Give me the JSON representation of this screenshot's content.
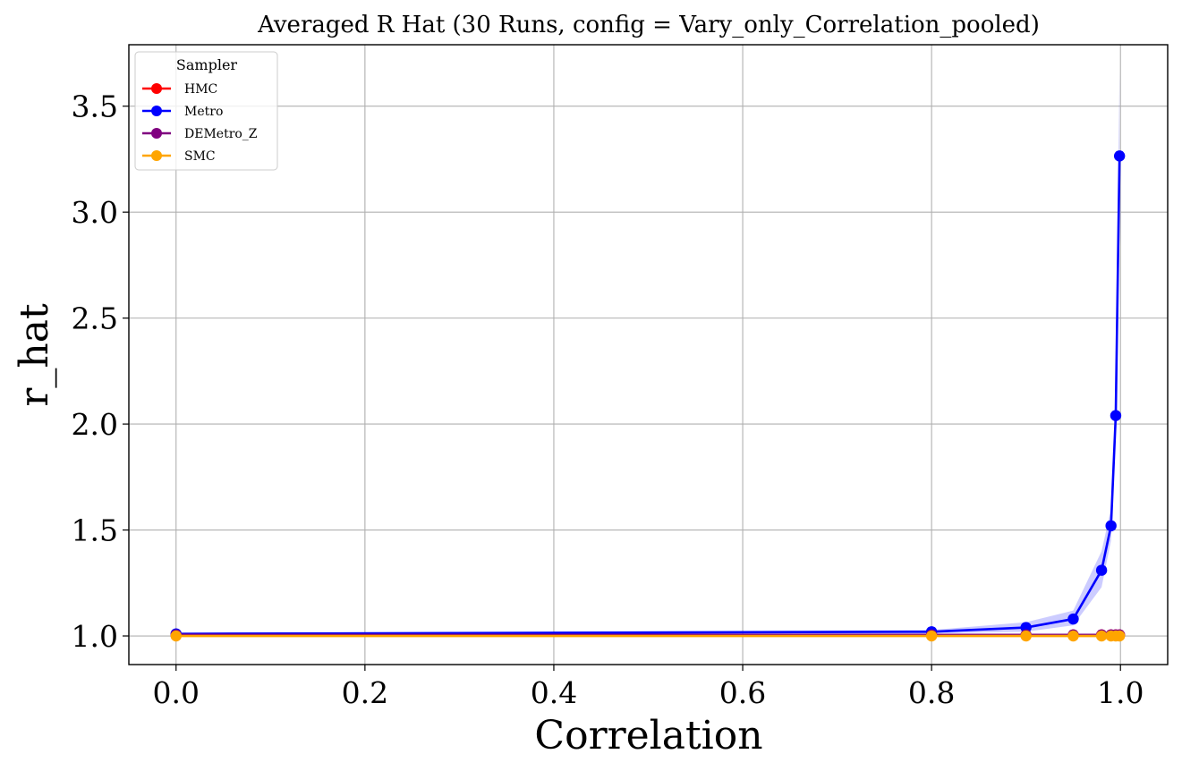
{
  "chart_data": {
    "type": "line",
    "title": "Averaged R Hat (30 Runs, config = Vary_only_Correlation_pooled)",
    "xlabel": "Correlation",
    "ylabel": "r_hat",
    "xlim": [
      -0.05,
      1.05
    ],
    "ylim": [
      0.865,
      3.79
    ],
    "xticks": [
      0.0,
      0.2,
      0.4,
      0.6,
      0.8,
      1.0
    ],
    "xtick_labels": [
      "0.0",
      "0.2",
      "0.4",
      "0.6",
      "0.8",
      "1.0"
    ],
    "yticks": [
      1.0,
      1.5,
      2.0,
      2.5,
      3.0,
      3.5
    ],
    "ytick_labels": [
      "1.0",
      "1.5",
      "2.0",
      "2.5",
      "3.0",
      "3.5"
    ],
    "grid": true,
    "legend": {
      "title": "Sampler",
      "placement": "upper-left"
    },
    "x": [
      0.0,
      0.8,
      0.9,
      0.95,
      0.98,
      0.99,
      0.995,
      0.999
    ],
    "series": [
      {
        "name": "HMC",
        "color": "#ff0000",
        "values": [
          1.005,
          1.005,
          1.005,
          1.005,
          1.005,
          1.005,
          1.005,
          1.005
        ]
      },
      {
        "name": "Metro",
        "color": "#0000ff",
        "values": [
          1.01,
          1.02,
          1.04,
          1.08,
          1.31,
          1.52,
          2.04,
          3.265
        ],
        "band_lower": [
          1.008,
          1.012,
          1.02,
          1.05,
          1.23,
          1.45,
          1.95,
          2.88
        ],
        "band_upper": [
          1.012,
          1.028,
          1.065,
          1.12,
          1.4,
          1.6,
          2.14,
          3.66
        ]
      },
      {
        "name": "DEMetro_Z",
        "color": "#800080",
        "values": [
          1.005,
          1.005,
          1.005,
          1.005,
          1.005,
          1.005,
          1.005,
          1.005
        ]
      },
      {
        "name": "SMC",
        "color": "#ffa500",
        "values": [
          1.0,
          1.0,
          1.0,
          1.0,
          1.0,
          1.0,
          1.0,
          1.0
        ]
      }
    ]
  }
}
